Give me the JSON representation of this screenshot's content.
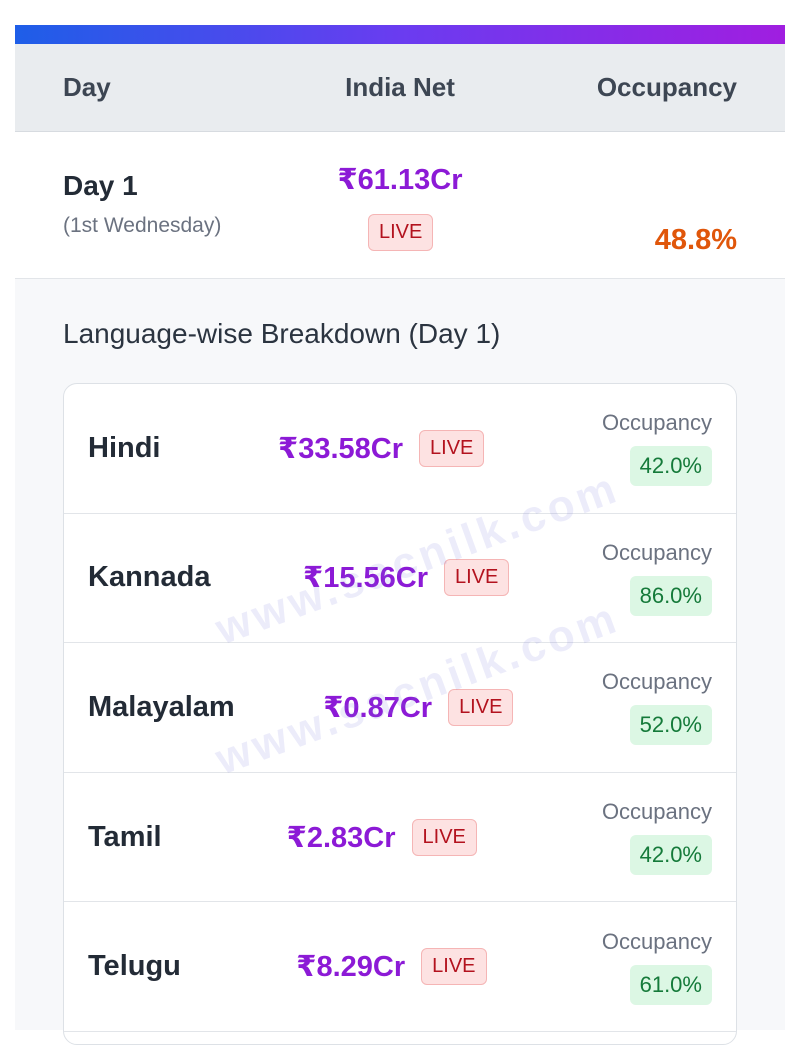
{
  "header": {
    "columns": [
      "Day",
      "India Net",
      "Occupancy"
    ]
  },
  "summary": {
    "day": "Day 1",
    "weekday": "(1st Wednesday)",
    "net": "₹61.13Cr",
    "status": "LIVE",
    "occupancy": "48.8%"
  },
  "breakdown": {
    "title": "Language-wise Breakdown (Day 1)",
    "rows": [
      {
        "language": "Hindi",
        "net": "₹33.58Cr",
        "status": "LIVE",
        "occupancy_label": "Occupancy",
        "occupancy": "42.0%"
      },
      {
        "language": "Kannada",
        "net": "₹15.56Cr",
        "status": "LIVE",
        "occupancy_label": "Occupancy",
        "occupancy": "86.0%"
      },
      {
        "language": "Malayalam",
        "net": "₹0.87Cr",
        "status": "LIVE",
        "occupancy_label": "Occupancy",
        "occupancy": "52.0%"
      },
      {
        "language": "Tamil",
        "net": "₹2.83Cr",
        "status": "LIVE",
        "occupancy_label": "Occupancy",
        "occupancy": "42.0%"
      },
      {
        "language": "Telugu",
        "net": "₹8.29Cr",
        "status": "LIVE",
        "occupancy_label": "Occupancy",
        "occupancy": "61.0%"
      }
    ]
  },
  "watermark": "www.sacnilk.com"
}
